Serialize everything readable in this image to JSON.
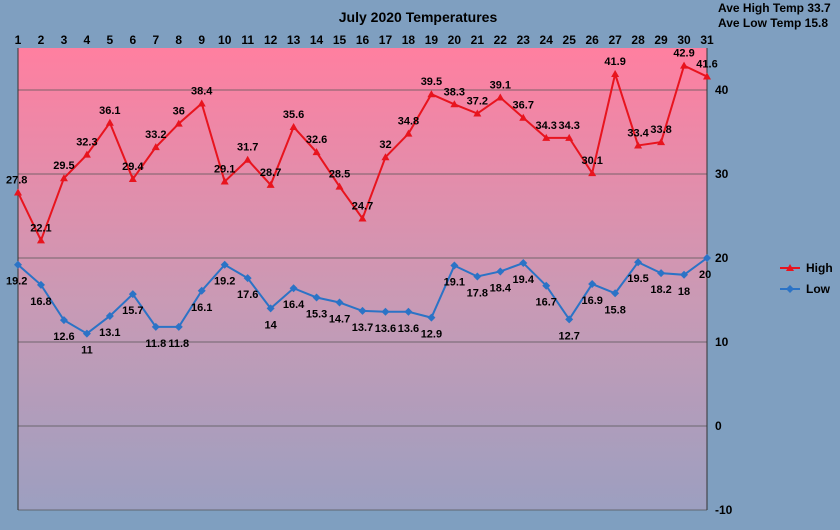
{
  "chart_data": {
    "type": "line",
    "title": "July 2020 Temperatures",
    "categories": [
      "1",
      "2",
      "3",
      "4",
      "5",
      "6",
      "7",
      "8",
      "9",
      "10",
      "11",
      "12",
      "13",
      "14",
      "15",
      "16",
      "17",
      "18",
      "19",
      "20",
      "21",
      "22",
      "23",
      "24",
      "25",
      "26",
      "27",
      "28",
      "29",
      "30",
      "31"
    ],
    "series": [
      {
        "name": "High",
        "color": "#e8141e",
        "marker": "triangle",
        "values": [
          27.8,
          22.1,
          29.5,
          32.3,
          36.1,
          29.4,
          33.2,
          36,
          38.4,
          29.1,
          31.7,
          28.7,
          35.6,
          32.6,
          28.5,
          24.7,
          32,
          34.8,
          39.5,
          38.3,
          37.2,
          39.1,
          36.7,
          34.3,
          34.3,
          30.1,
          41.9,
          33.4,
          33.8,
          42.9,
          41.6
        ]
      },
      {
        "name": "Low",
        "color": "#2b73c6",
        "marker": "diamond",
        "values": [
          19.2,
          16.8,
          12.6,
          11,
          13.1,
          15.7,
          11.8,
          11.8,
          16.1,
          19.2,
          17.6,
          14,
          16.4,
          15.3,
          14.7,
          13.7,
          13.6,
          13.6,
          12.9,
          19.1,
          17.8,
          18.4,
          19.4,
          16.7,
          12.7,
          16.9,
          15.8,
          19.5,
          18.2,
          18,
          20
        ]
      }
    ],
    "ylim": [
      -10,
      45
    ],
    "yticks": [
      "-10",
      "0",
      "10",
      "20",
      "30",
      "40"
    ],
    "grid": true,
    "legend": "right",
    "stats": {
      "ave_high": "Ave High Temp 33.7",
      "ave_low": "Ave Low Temp 15.8"
    },
    "background_gradient": [
      "#ff7fa0",
      "#9c9fc0"
    ]
  }
}
